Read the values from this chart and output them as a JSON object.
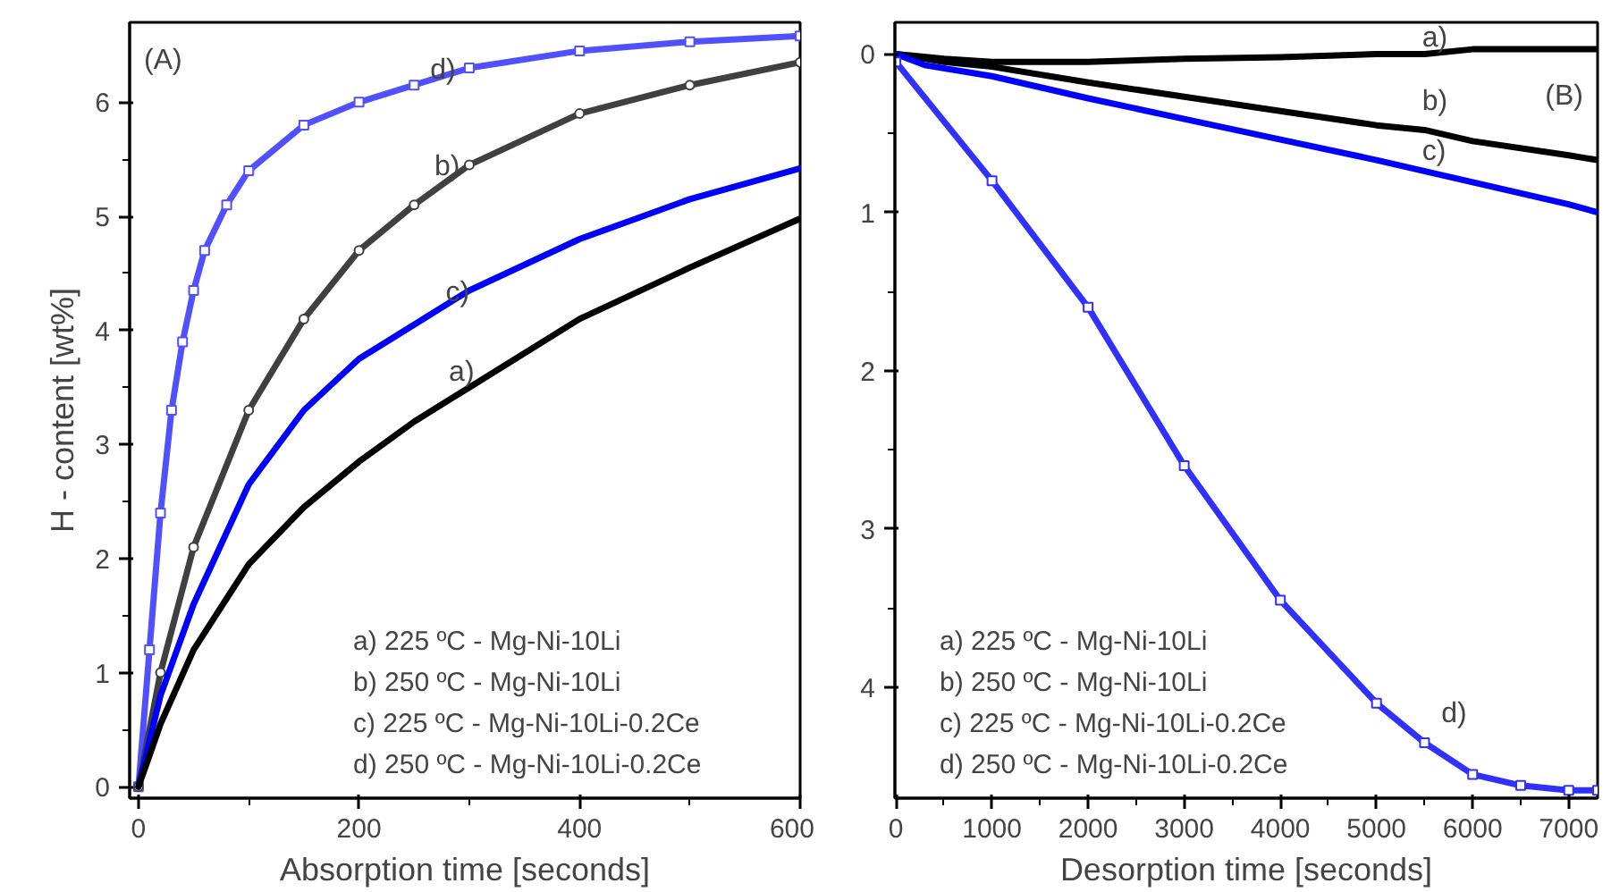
{
  "chart_data": [
    {
      "type": "line",
      "xlabel": "Absorption time [seconds]",
      "ylabel": "H - content [wt%]",
      "xlim": [
        -8,
        600
      ],
      "ylim": [
        -0.1,
        6.7
      ],
      "xticks": [
        0,
        200,
        400,
        600
      ],
      "yticks": [
        0,
        1,
        2,
        3,
        4,
        5,
        6
      ],
      "grid": false,
      "annotations": [
        "(A)",
        "a) 225 ºC - Mg-Ni-10Li",
        "b) 250 ºC - Mg-Ni-10Li",
        "c) 225 ºC - Mg-Ni-10Li-0.2Ce",
        "d) 250 ºC - Mg-Ni-10Li-0.2Ce",
        {
          "text": "d)",
          "x": 258,
          "y": 6.1
        },
        {
          "text": "b)",
          "x": 262,
          "y": 5.25
        },
        {
          "text": "c)",
          "x": 272,
          "y": 4.15
        },
        {
          "text": "a)",
          "x": 275,
          "y": 3.45
        }
      ],
      "series": [
        {
          "color": "#5050ff",
          "marker": "square",
          "x": [
            0,
            10,
            20,
            30,
            40,
            50,
            60,
            80,
            100,
            150,
            200,
            250,
            300,
            400,
            500,
            600
          ],
          "values": [
            0,
            1.2,
            2.4,
            3.3,
            3.9,
            4.35,
            4.7,
            5.1,
            5.4,
            5.8,
            6.0,
            6.15,
            6.3,
            6.45,
            6.53,
            6.58
          ]
        },
        {
          "color": "#404040",
          "marker": "circle",
          "x": [
            0,
            20,
            50,
            100,
            150,
            200,
            250,
            300,
            400,
            500,
            600
          ],
          "values": [
            0,
            1.0,
            2.1,
            3.3,
            4.1,
            4.7,
            5.1,
            5.45,
            5.9,
            6.15,
            6.35
          ]
        },
        {
          "color": "#0000ff",
          "marker": "none",
          "x": [
            0,
            20,
            50,
            100,
            150,
            200,
            250,
            300,
            400,
            500,
            600
          ],
          "values": [
            0,
            0.8,
            1.6,
            2.65,
            3.3,
            3.75,
            4.05,
            4.35,
            4.8,
            5.15,
            5.42
          ]
        },
        {
          "color": "#000000",
          "marker": "none",
          "x": [
            0,
            20,
            50,
            100,
            150,
            200,
            250,
            300,
            400,
            500,
            600
          ],
          "values": [
            0,
            0.55,
            1.2,
            1.95,
            2.45,
            2.85,
            3.2,
            3.5,
            4.1,
            4.55,
            4.98
          ]
        }
      ]
    },
    {
      "type": "line",
      "xlabel": "Desorption time [seconds]",
      "xlim": [
        -10,
        7300
      ],
      "ylim": [
        4.7,
        -0.2
      ],
      "xticks": [
        0,
        1000,
        2000,
        3000,
        4000,
        5000,
        6000,
        7000
      ],
      "yticks": [
        0,
        1,
        2,
        3,
        4
      ],
      "grid": false,
      "annotations": [
        "(B)",
        "a) 225 ºC - Mg-Ni-10Li",
        "b) 250 ºC - Mg-Ni-10Li",
        "c) 225 ºC - Mg-Ni-10Li-0.2Ce",
        "d) 250 ºC - Mg-Ni-10Li-0.2Ce",
        {
          "text": "a)",
          "x": 5400,
          "y": 0.03
        },
        {
          "text": "b)",
          "x": 5400,
          "y": 0.43
        },
        {
          "text": "c)",
          "x": 5400,
          "y": 0.75
        },
        {
          "text": "d)",
          "x": 5600,
          "y": 4.3
        }
      ],
      "series": [
        {
          "color": "#000000",
          "marker": "none",
          "x": [
            0,
            500,
            1000,
            2000,
            3000,
            4000,
            5000,
            5500,
            6000,
            7300
          ],
          "values": [
            0,
            0.03,
            0.05,
            0.05,
            0.03,
            0.02,
            0.0,
            0.0,
            -0.03,
            -0.03
          ]
        },
        {
          "color": "#000000",
          "marker": "none",
          "x": [
            0,
            500,
            1000,
            2000,
            3000,
            4000,
            5000,
            5500,
            6000,
            7000,
            7300
          ],
          "values": [
            0,
            0.05,
            0.08,
            0.18,
            0.27,
            0.36,
            0.45,
            0.48,
            0.55,
            0.64,
            0.67
          ]
        },
        {
          "color": "#0000ff",
          "marker": "none",
          "x": [
            0,
            300,
            1000,
            2000,
            3000,
            4000,
            5000,
            6000,
            7000,
            7300
          ],
          "values": [
            0,
            0.07,
            0.14,
            0.28,
            0.41,
            0.54,
            0.67,
            0.81,
            0.95,
            1.0
          ]
        },
        {
          "color": "#3030ff",
          "marker": "square",
          "x": [
            0,
            1000,
            2000,
            3000,
            4000,
            5000,
            5500,
            6000,
            6500,
            7000,
            7300
          ],
          "values": [
            0.05,
            0.8,
            1.6,
            2.6,
            3.45,
            4.1,
            4.35,
            4.55,
            4.62,
            4.65,
            4.65
          ]
        }
      ]
    }
  ]
}
